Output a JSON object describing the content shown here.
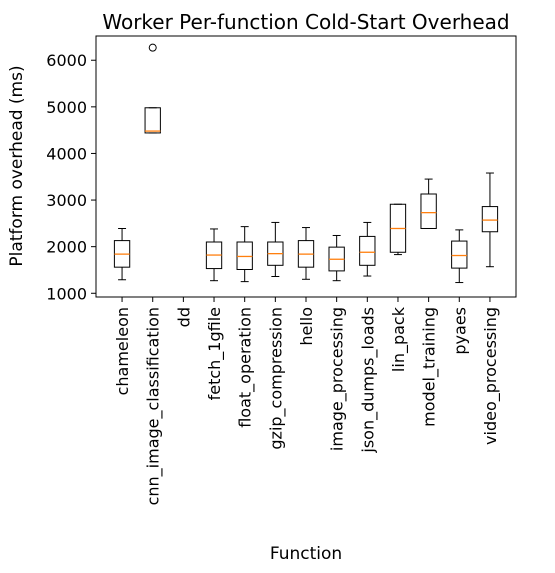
{
  "chart_data": {
    "type": "box",
    "title": "Worker Per-function Cold-Start Overhead",
    "xlabel": "Function",
    "ylabel": "Platform overhead (ms)",
    "ylim": [
      920,
      6520
    ],
    "yticks": [
      1000,
      2000,
      3000,
      4000,
      5000,
      6000
    ],
    "grid": false,
    "colors": {
      "box": "#000000",
      "median": "#ff7f0e"
    },
    "categories": [
      "chameleon",
      "cnn_image_classification",
      "dd",
      "fetch_1gfile",
      "float_operation",
      "gzip_compression",
      "hello",
      "image_processing",
      "json_dumps_loads",
      "lin_pack",
      "model_training",
      "pyaes",
      "video_processing"
    ],
    "boxes": [
      {
        "name": "chameleon",
        "whislo": 1290,
        "q1": 1560,
        "med": 1840,
        "q3": 2130,
        "whishi": 2390,
        "fliers": []
      },
      {
        "name": "cnn_image_classification",
        "whislo": 4440,
        "q1": 4440,
        "med": 4480,
        "q3": 4980,
        "whishi": 4980,
        "fliers": [
          6270
        ]
      },
      {
        "name": "dd",
        "empty": true
      },
      {
        "name": "fetch_1gfile",
        "whislo": 1270,
        "q1": 1530,
        "med": 1820,
        "q3": 2100,
        "whishi": 2380,
        "fliers": []
      },
      {
        "name": "float_operation",
        "whislo": 1250,
        "q1": 1510,
        "med": 1790,
        "q3": 2100,
        "whishi": 2430,
        "fliers": []
      },
      {
        "name": "gzip_compression",
        "whislo": 1360,
        "q1": 1600,
        "med": 1850,
        "q3": 2100,
        "whishi": 2520,
        "fliers": []
      },
      {
        "name": "hello",
        "whislo": 1300,
        "q1": 1560,
        "med": 1840,
        "q3": 2130,
        "whishi": 2410,
        "fliers": []
      },
      {
        "name": "image_processing",
        "whislo": 1270,
        "q1": 1480,
        "med": 1730,
        "q3": 1990,
        "whishi": 2240,
        "fliers": []
      },
      {
        "name": "json_dumps_loads",
        "whislo": 1370,
        "q1": 1600,
        "med": 1880,
        "q3": 2220,
        "whishi": 2520,
        "fliers": []
      },
      {
        "name": "lin_pack",
        "whislo": 1830,
        "q1": 1880,
        "med": 2390,
        "q3": 2910,
        "whishi": 2910,
        "fliers": []
      },
      {
        "name": "model_training",
        "whislo": 2390,
        "q1": 2390,
        "med": 2730,
        "q3": 3130,
        "whishi": 3450,
        "fliers": []
      },
      {
        "name": "pyaes",
        "whislo": 1230,
        "q1": 1540,
        "med": 1810,
        "q3": 2120,
        "whishi": 2360,
        "fliers": []
      },
      {
        "name": "video_processing",
        "whislo": 1570,
        "q1": 2320,
        "med": 2570,
        "q3": 2860,
        "whishi": 3580,
        "fliers": []
      }
    ]
  }
}
